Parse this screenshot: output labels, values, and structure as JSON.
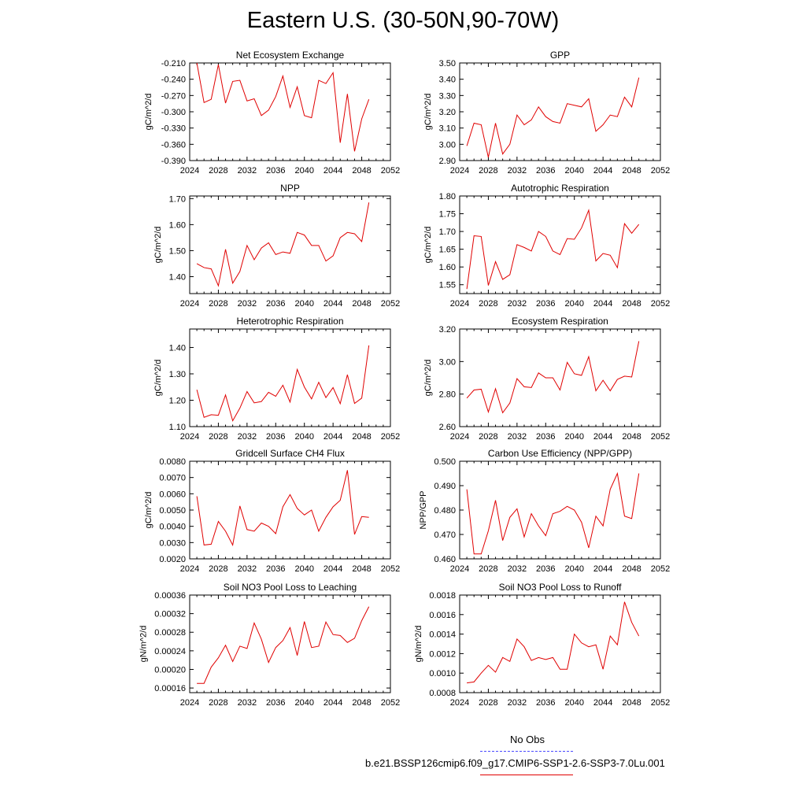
{
  "title": "Eastern U.S. (30-50N,90-70W)",
  "legend": {
    "obs_label": "No Obs",
    "model_label": "b.e21.BSSP126cmip6.f09_g17.CMIP6-SSP1-2.6-SSP3-7.0Lu.001",
    "obs_color": "#4a4aff",
    "model_color": "#e00000"
  },
  "chart_data": [
    {
      "type": "line",
      "title": "Net Ecosystem Exchange",
      "xlabel": "",
      "ylabel": "gC/m^2/d",
      "xlim": [
        2024,
        2052
      ],
      "ylim": [
        -0.39,
        -0.21
      ],
      "xticks": [
        "2024",
        "2028",
        "2032",
        "2036",
        "2040",
        "2044",
        "2048",
        "2052"
      ],
      "yticks": [
        "-0.390",
        "-0.360",
        "-0.330",
        "-0.300",
        "-0.270",
        "-0.240",
        "-0.210"
      ],
      "series": [
        {
          "color": "#e00000",
          "x": [
            2025,
            2026,
            2027,
            2028,
            2029,
            2030,
            2031,
            2032,
            2033,
            2034,
            2035,
            2036,
            2037,
            2038,
            2039,
            2040,
            2041,
            2042,
            2043,
            2044,
            2045,
            2046,
            2047,
            2048,
            2049
          ],
          "y": [
            -0.21,
            -0.283,
            -0.277,
            -0.213,
            -0.284,
            -0.244,
            -0.242,
            -0.28,
            -0.276,
            -0.307,
            -0.297,
            -0.272,
            -0.234,
            -0.292,
            -0.254,
            -0.307,
            -0.311,
            -0.242,
            -0.248,
            -0.228,
            -0.357,
            -0.267,
            -0.373,
            -0.313,
            -0.277
          ]
        }
      ]
    },
    {
      "type": "line",
      "title": "GPP",
      "xlabel": "",
      "ylabel": "gC/m^2/d",
      "xlim": [
        2024,
        2052
      ],
      "ylim": [
        2.9,
        3.5
      ],
      "xticks": [
        "2024",
        "2028",
        "2032",
        "2036",
        "2040",
        "2044",
        "2048",
        "2052"
      ],
      "yticks": [
        "2.90",
        "3.00",
        "3.10",
        "3.20",
        "3.30",
        "3.40",
        "3.50"
      ],
      "series": [
        {
          "color": "#e00000",
          "x": [
            2025,
            2026,
            2027,
            2028,
            2029,
            2030,
            2031,
            2032,
            2033,
            2034,
            2035,
            2036,
            2037,
            2038,
            2039,
            2040,
            2041,
            2042,
            2043,
            2044,
            2045,
            2046,
            2047,
            2048,
            2049
          ],
          "y": [
            2.99,
            3.13,
            3.12,
            2.92,
            3.13,
            2.94,
            3.0,
            3.18,
            3.12,
            3.15,
            3.23,
            3.17,
            3.14,
            3.13,
            3.25,
            3.24,
            3.23,
            3.28,
            3.08,
            3.12,
            3.18,
            3.17,
            3.29,
            3.23,
            3.41
          ]
        }
      ]
    },
    {
      "type": "line",
      "title": "NPP",
      "xlabel": "",
      "ylabel": "gC/m^2/d",
      "xlim": [
        2024,
        2052
      ],
      "ylim": [
        1.335,
        1.71
      ],
      "xticks": [
        "2024",
        "2028",
        "2032",
        "2036",
        "2040",
        "2044",
        "2048",
        "2052"
      ],
      "yticks": [
        "1.40",
        "1.50",
        "1.60",
        "1.70"
      ],
      "series": [
        {
          "color": "#e00000",
          "x": [
            2025,
            2026,
            2027,
            2028,
            2029,
            2030,
            2031,
            2032,
            2033,
            2034,
            2035,
            2036,
            2037,
            2038,
            2039,
            2040,
            2041,
            2042,
            2043,
            2044,
            2045,
            2046,
            2047,
            2048,
            2049
          ],
          "y": [
            1.45,
            1.435,
            1.43,
            1.365,
            1.505,
            1.375,
            1.42,
            1.52,
            1.465,
            1.51,
            1.53,
            1.485,
            1.495,
            1.49,
            1.57,
            1.56,
            1.52,
            1.52,
            1.46,
            1.48,
            1.55,
            1.57,
            1.565,
            1.535,
            1.685
          ]
        }
      ]
    },
    {
      "type": "line",
      "title": "Autotrophic Respiration",
      "xlabel": "",
      "ylabel": "gC/m^2/d",
      "xlim": [
        2024,
        2052
      ],
      "ylim": [
        1.525,
        1.8
      ],
      "xticks": [
        "2024",
        "2028",
        "2032",
        "2036",
        "2040",
        "2044",
        "2048",
        "2052"
      ],
      "yticks": [
        "1.55",
        "1.60",
        "1.65",
        "1.70",
        "1.75",
        "1.80"
      ],
      "series": [
        {
          "color": "#e00000",
          "x": [
            2025,
            2026,
            2027,
            2028,
            2029,
            2030,
            2031,
            2032,
            2033,
            2034,
            2035,
            2036,
            2037,
            2038,
            2039,
            2040,
            2041,
            2042,
            2043,
            2044,
            2045,
            2046,
            2047,
            2048,
            2049
          ],
          "y": [
            1.538,
            1.688,
            1.686,
            1.548,
            1.615,
            1.565,
            1.578,
            1.663,
            1.655,
            1.645,
            1.7,
            1.686,
            1.645,
            1.635,
            1.68,
            1.678,
            1.71,
            1.76,
            1.617,
            1.638,
            1.633,
            1.598,
            1.722,
            1.695,
            1.72
          ]
        }
      ]
    },
    {
      "type": "line",
      "title": "Heterotrophic Respiration",
      "xlabel": "",
      "ylabel": "gC/m^2/d",
      "xlim": [
        2024,
        2052
      ],
      "ylim": [
        1.1,
        1.47
      ],
      "xticks": [
        "2024",
        "2028",
        "2032",
        "2036",
        "2040",
        "2044",
        "2048",
        "2052"
      ],
      "yticks": [
        "1.10",
        "1.20",
        "1.30",
        "1.40"
      ],
      "series": [
        {
          "color": "#e00000",
          "x": [
            2025,
            2026,
            2027,
            2028,
            2029,
            2030,
            2031,
            2032,
            2033,
            2034,
            2035,
            2036,
            2037,
            2038,
            2039,
            2040,
            2041,
            2042,
            2043,
            2044,
            2045,
            2046,
            2047,
            2048,
            2049
          ],
          "y": [
            1.24,
            1.135,
            1.145,
            1.143,
            1.22,
            1.122,
            1.17,
            1.233,
            1.19,
            1.195,
            1.23,
            1.215,
            1.257,
            1.193,
            1.317,
            1.25,
            1.205,
            1.268,
            1.21,
            1.248,
            1.187,
            1.297,
            1.188,
            1.208,
            1.408
          ]
        }
      ]
    },
    {
      "type": "line",
      "title": "Ecosystem Respiration",
      "xlabel": "",
      "ylabel": "gC/m^2/d",
      "xlim": [
        2024,
        2052
      ],
      "ylim": [
        2.6,
        3.2
      ],
      "xticks": [
        "2024",
        "2028",
        "2032",
        "2036",
        "2040",
        "2044",
        "2048",
        "2052"
      ],
      "yticks": [
        "2.60",
        "2.80",
        "3.00",
        "3.20"
      ],
      "series": [
        {
          "color": "#e00000",
          "x": [
            2025,
            2026,
            2027,
            2028,
            2029,
            2030,
            2031,
            2032,
            2033,
            2034,
            2035,
            2036,
            2037,
            2038,
            2039,
            2040,
            2041,
            2042,
            2043,
            2044,
            2045,
            2046,
            2047,
            2048,
            2049
          ],
          "y": [
            2.775,
            2.825,
            2.83,
            2.69,
            2.833,
            2.685,
            2.745,
            2.895,
            2.845,
            2.84,
            2.93,
            2.9,
            2.9,
            2.825,
            2.995,
            2.925,
            2.915,
            3.03,
            2.82,
            2.885,
            2.82,
            2.89,
            2.91,
            2.905,
            3.125
          ]
        }
      ]
    },
    {
      "type": "line",
      "title": "Gridcell Surface CH4 Flux",
      "xlabel": "",
      "ylabel": "gC/m^2/d",
      "xlim": [
        2024,
        2052
      ],
      "ylim": [
        0.002,
        0.008
      ],
      "xticks": [
        "2024",
        "2028",
        "2032",
        "2036",
        "2040",
        "2044",
        "2048",
        "2052"
      ],
      "yticks": [
        "0.0020",
        "0.0030",
        "0.0040",
        "0.0050",
        "0.0060",
        "0.0070",
        "0.0080"
      ],
      "series": [
        {
          "color": "#e00000",
          "x": [
            2025,
            2026,
            2027,
            2028,
            2029,
            2030,
            2031,
            2032,
            2033,
            2034,
            2035,
            2036,
            2037,
            2038,
            2039,
            2040,
            2041,
            2042,
            2043,
            2044,
            2045,
            2046,
            2047,
            2048,
            2049
          ],
          "y": [
            0.00585,
            0.00285,
            0.0029,
            0.0043,
            0.0037,
            0.00285,
            0.00525,
            0.0038,
            0.0037,
            0.0042,
            0.004,
            0.00355,
            0.0052,
            0.00595,
            0.0051,
            0.0047,
            0.005,
            0.0037,
            0.00455,
            0.0052,
            0.0056,
            0.00745,
            0.0035,
            0.0046,
            0.00455
          ]
        }
      ]
    },
    {
      "type": "line",
      "title": "Carbon Use Efficiency (NPP/GPP)",
      "xlabel": "",
      "ylabel": "NPP/GPP",
      "xlim": [
        2024,
        2052
      ],
      "ylim": [
        0.46,
        0.5
      ],
      "xticks": [
        "2024",
        "2028",
        "2032",
        "2036",
        "2040",
        "2044",
        "2048",
        "2052"
      ],
      "yticks": [
        "0.460",
        "0.470",
        "0.480",
        "0.490",
        "0.500"
      ],
      "series": [
        {
          "color": "#e00000",
          "x": [
            2025,
            2026,
            2027,
            2028,
            2029,
            2030,
            2031,
            2032,
            2033,
            2034,
            2035,
            2036,
            2037,
            2038,
            2039,
            2040,
            2041,
            2042,
            2043,
            2044,
            2045,
            2046,
            2047,
            2048,
            2049
          ],
          "y": [
            0.4885,
            0.462,
            0.462,
            0.4715,
            0.484,
            0.4675,
            0.477,
            0.4805,
            0.469,
            0.4785,
            0.4735,
            0.4695,
            0.4785,
            0.4795,
            0.4815,
            0.48,
            0.475,
            0.4645,
            0.4775,
            0.4735,
            0.4885,
            0.495,
            0.4775,
            0.4765,
            0.495
          ]
        }
      ]
    },
    {
      "type": "line",
      "title": "Soil NO3 Pool Loss to Leaching",
      "xlabel": "",
      "ylabel": "gN/m^2/d",
      "xlim": [
        2024,
        2052
      ],
      "ylim": [
        0.00015,
        0.00036
      ],
      "xticks": [
        "2024",
        "2028",
        "2032",
        "2036",
        "2040",
        "2044",
        "2048",
        "2052"
      ],
      "yticks": [
        "0.00016",
        "0.00020",
        "0.00024",
        "0.00028",
        "0.00032",
        "0.00036"
      ],
      "series": [
        {
          "color": "#e00000",
          "x": [
            2025,
            2026,
            2027,
            2028,
            2029,
            2030,
            2031,
            2032,
            2033,
            2034,
            2035,
            2036,
            2037,
            2038,
            2039,
            2040,
            2041,
            2042,
            2043,
            2044,
            2045,
            2046,
            2047,
            2048,
            2049
          ],
          "y": [
            0.00017,
            0.00017,
            0.000205,
            0.000225,
            0.000252,
            0.000217,
            0.00025,
            0.000245,
            0.0003,
            0.000265,
            0.000215,
            0.000247,
            0.000262,
            0.00029,
            0.00023,
            0.000303,
            0.000247,
            0.00025,
            0.000302,
            0.000275,
            0.000273,
            0.000258,
            0.000267,
            0.000305,
            0.000335
          ]
        }
      ]
    },
    {
      "type": "line",
      "title": "Soil NO3 Pool Loss to Runoff",
      "xlabel": "",
      "ylabel": "gN/m^2/d",
      "xlim": [
        2024,
        2052
      ],
      "ylim": [
        0.0008,
        0.0018
      ],
      "xticks": [
        "2024",
        "2028",
        "2032",
        "2036",
        "2040",
        "2044",
        "2048",
        "2052"
      ],
      "yticks": [
        "0.0008",
        "0.0010",
        "0.0012",
        "0.0014",
        "0.0016",
        "0.0018"
      ],
      "series": [
        {
          "color": "#e00000",
          "x": [
            2025,
            2026,
            2027,
            2028,
            2029,
            2030,
            2031,
            2032,
            2033,
            2034,
            2035,
            2036,
            2037,
            2038,
            2039,
            2040,
            2041,
            2042,
            2043,
            2044,
            2045,
            2046,
            2047,
            2048,
            2049
          ],
          "y": [
            0.0009,
            0.00091,
            0.001,
            0.00108,
            0.00101,
            0.00116,
            0.00112,
            0.00135,
            0.00127,
            0.00113,
            0.00116,
            0.00114,
            0.00116,
            0.00104,
            0.00104,
            0.0014,
            0.00131,
            0.00127,
            0.00129,
            0.00104,
            0.00138,
            0.00129,
            0.00173,
            0.00152,
            0.00138
          ]
        }
      ]
    }
  ]
}
